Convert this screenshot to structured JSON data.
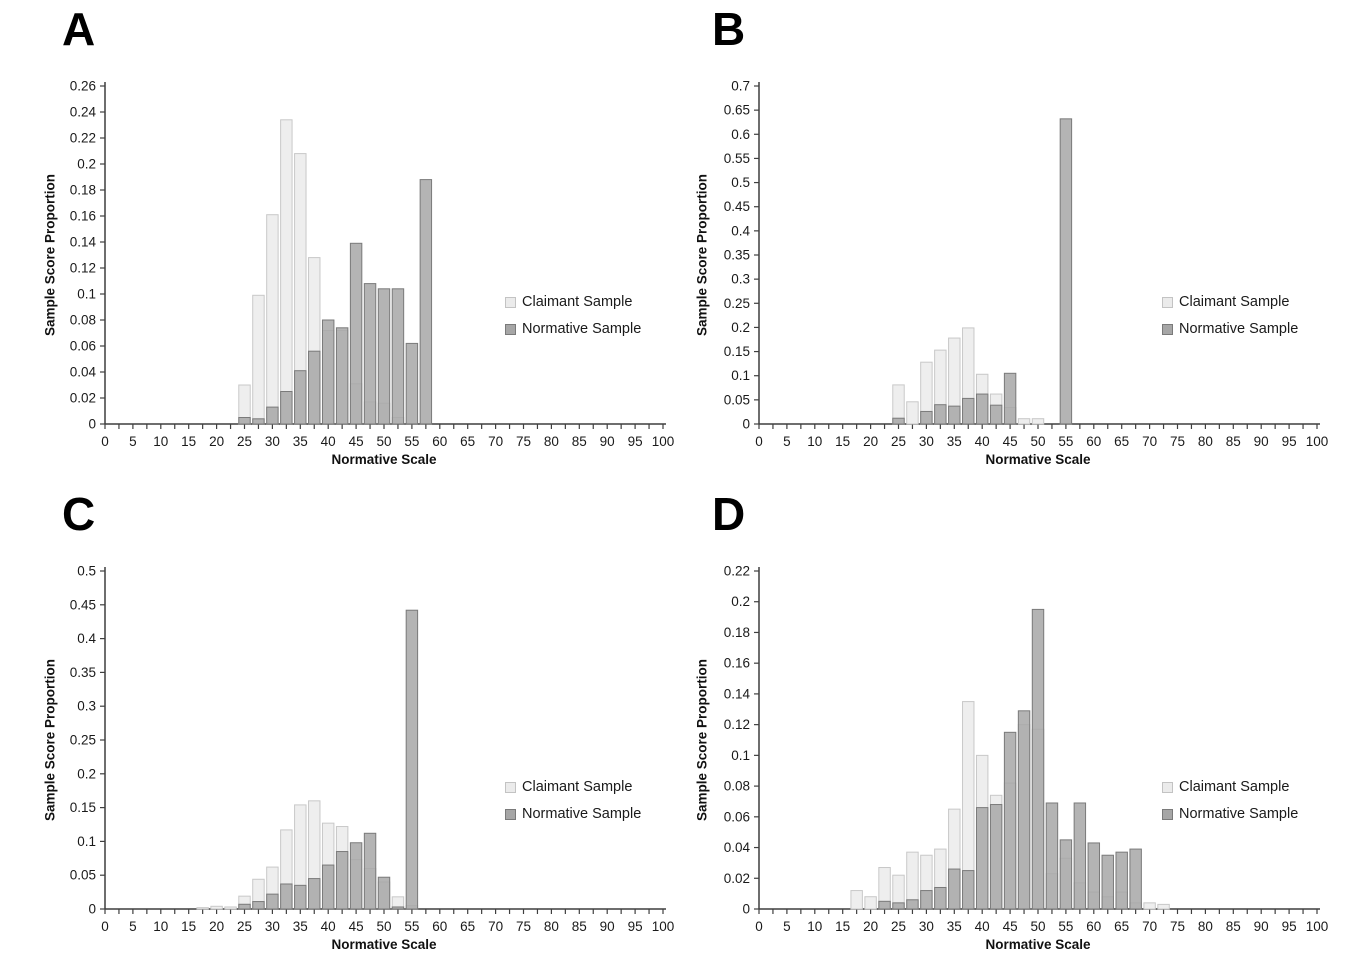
{
  "figure": {
    "ylabel": "Sample Score Proportion",
    "xlabel": "Normative Scale"
  },
  "legend": {
    "claimant": "Claimant Sample",
    "normative": "Normative Sample"
  },
  "colors": {
    "claimant_fill": "#eeeeee",
    "claimant_border": "#c8c8c8",
    "normative_fill": "#a7a7a7",
    "normative_border": "#7a7a7a",
    "axis_color": "#3f3f3f",
    "text_color": "#1a1a1a"
  },
  "chart_data": [
    {
      "panel_label": "A",
      "type": "bar",
      "title": "",
      "xlabel": "Normative Scale",
      "ylabel": "Sample Score Proportion",
      "xlim": [
        0,
        100
      ],
      "x_label_step": 5,
      "x_tick_step": 2.5,
      "ylim": [
        0,
        0.26
      ],
      "y_tick_step": 0.02,
      "bin_width": 2.5,
      "legend_position": "right",
      "grid": false,
      "categories": [
        25,
        27.5,
        30,
        32.5,
        35,
        37.5,
        40,
        42.5,
        45,
        47.5,
        50,
        52.5,
        55,
        57.5
      ],
      "series": [
        {
          "name": "Claimant Sample",
          "values": [
            0.03,
            0.099,
            0.161,
            0.234,
            0.208,
            0.128,
            0.072,
            0.072,
            0.031,
            0.017,
            0.016,
            0.005,
            0,
            0
          ]
        },
        {
          "name": "Normative Sample",
          "values": [
            0.005,
            0.004,
            0.013,
            0.025,
            0.041,
            0.056,
            0.08,
            0.074,
            0.139,
            0.108,
            0.104,
            0.104,
            0.062,
            0.188
          ]
        }
      ]
    },
    {
      "panel_label": "B",
      "type": "bar",
      "title": "",
      "xlabel": "Normative Scale",
      "ylabel": "Sample Score Proportion",
      "xlim": [
        0,
        100
      ],
      "x_label_step": 5,
      "x_tick_step": 2.5,
      "ylim": [
        0,
        0.7
      ],
      "y_tick_step": 0.05,
      "bin_width": 2.5,
      "legend_position": "right",
      "grid": false,
      "categories": [
        25,
        27.5,
        30,
        32.5,
        35,
        37.5,
        40,
        42.5,
        45,
        47.5,
        50,
        52.5,
        55
      ],
      "series": [
        {
          "name": "Claimant Sample",
          "values": [
            0.081,
            0.046,
            0.128,
            0.153,
            0.178,
            0.199,
            0.103,
            0.062,
            0.034,
            0.011,
            0.011,
            0,
            0
          ]
        },
        {
          "name": "Normative Sample",
          "values": [
            0.012,
            0,
            0.026,
            0.04,
            0.037,
            0.053,
            0.062,
            0.039,
            0.105,
            0,
            0,
            0,
            0.632
          ]
        }
      ]
    },
    {
      "panel_label": "C",
      "type": "bar",
      "title": "",
      "xlabel": "Normative Scale",
      "ylabel": "Sample Score Proportion",
      "xlim": [
        0,
        100
      ],
      "x_label_step": 5,
      "x_tick_step": 2.5,
      "ylim": [
        0,
        0.5
      ],
      "y_tick_step": 0.05,
      "bin_width": 2.5,
      "legend_position": "right",
      "grid": false,
      "categories": [
        17.5,
        20,
        22.5,
        25,
        27.5,
        30,
        32.5,
        35,
        37.5,
        40,
        42.5,
        45,
        47.5,
        50,
        52.5,
        55
      ],
      "series": [
        {
          "name": "Claimant Sample",
          "values": [
            0.002,
            0.004,
            0.003,
            0.019,
            0.044,
            0.062,
            0.117,
            0.154,
            0.16,
            0.127,
            0.122,
            0.073,
            0.06,
            0.04,
            0.018,
            0.005
          ]
        },
        {
          "name": "Normative Sample",
          "values": [
            0,
            0,
            0,
            0.007,
            0.011,
            0.022,
            0.037,
            0.035,
            0.045,
            0.065,
            0.085,
            0.098,
            0.112,
            0.047,
            0.003,
            0.442
          ]
        }
      ]
    },
    {
      "panel_label": "D",
      "type": "bar",
      "title": "",
      "xlabel": "Normative Scale",
      "ylabel": "Sample Score Proportion",
      "xlim": [
        0,
        100
      ],
      "x_label_step": 5,
      "x_tick_step": 2.5,
      "ylim": [
        0,
        0.22
      ],
      "y_tick_step": 0.02,
      "bin_width": 2.5,
      "legend_position": "right",
      "grid": false,
      "categories": [
        17.5,
        20,
        22.5,
        25,
        27.5,
        30,
        32.5,
        35,
        37.5,
        40,
        42.5,
        45,
        47.5,
        50,
        52.5,
        55,
        57.5,
        60,
        62.5,
        65,
        67.5,
        70,
        72.5
      ],
      "series": [
        {
          "name": "Claimant Sample",
          "values": [
            0.012,
            0.008,
            0.027,
            0.022,
            0.037,
            0.035,
            0.039,
            0.065,
            0.135,
            0.1,
            0.074,
            0.082,
            0.12,
            0.117,
            0.023,
            0.033,
            0.017,
            0.011,
            0.008,
            0.011,
            0.004,
            0.004,
            0.003
          ]
        },
        {
          "name": "Normative Sample",
          "values": [
            0,
            0,
            0.005,
            0.004,
            0.006,
            0.012,
            0.014,
            0.026,
            0.025,
            0.066,
            0.068,
            0.115,
            0.129,
            0.195,
            0.069,
            0.045,
            0.069,
            0.043,
            0.035,
            0.037,
            0.039,
            0,
            0
          ]
        }
      ]
    }
  ]
}
